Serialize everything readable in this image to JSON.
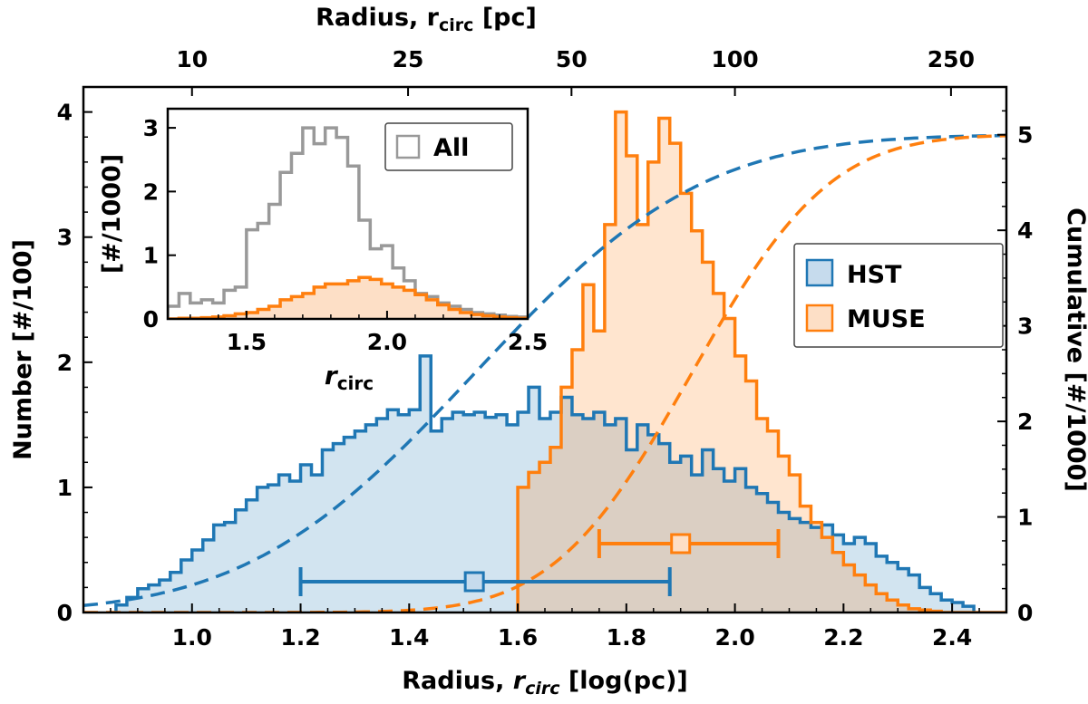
{
  "chart_data": [
    {
      "type": "histogram",
      "xlabel_prefix": "Radius, ",
      "xlabel_var": "r",
      "xlabel_sub": "circ",
      "xlabel_suffix": " [log(pc)]",
      "top_xlabel_prefix": "Radius, r",
      "top_xlabel_sub": "circ",
      "top_xlabel_suffix": " [pc]",
      "ylabel": "Number [#/100]",
      "y2label": "Cumulative [#/1000]",
      "xlim": [
        0.8,
        2.5
      ],
      "ylim": [
        0,
        4.2
      ],
      "y2lim": [
        0,
        5.5
      ],
      "xticks": [
        1.0,
        1.2,
        1.4,
        1.6,
        1.8,
        2.0,
        2.2,
        2.4
      ],
      "xtick_labels": [
        "1.0",
        "1.2",
        "1.4",
        "1.6",
        "1.8",
        "2.0",
        "2.2",
        "2.4"
      ],
      "yticks": [
        0,
        1,
        2,
        3,
        4
      ],
      "ytick_labels": [
        "0",
        "1",
        "2",
        "3",
        "4"
      ],
      "y2ticks": [
        0,
        1,
        2,
        3,
        4,
        5
      ],
      "y2tick_labels": [
        "0",
        "1",
        "2",
        "3",
        "4",
        "5"
      ],
      "top_xticks_pc": [
        10,
        25,
        50,
        100,
        250
      ],
      "top_xtick_labels": [
        "10",
        "25",
        "50",
        "100",
        "250"
      ],
      "bin_width": 0.02,
      "legend_position": "center-right",
      "series": [
        {
          "name": "HST",
          "color": "#1f77b4",
          "fill": "#c6dbed",
          "bin_start": 0.86,
          "counts": [
            0.06,
            0.12,
            0.19,
            0.22,
            0.26,
            0.32,
            0.42,
            0.5,
            0.58,
            0.7,
            0.72,
            0.82,
            0.9,
            1.0,
            1.02,
            1.1,
            1.05,
            1.18,
            1.1,
            1.3,
            1.35,
            1.4,
            1.45,
            1.5,
            1.55,
            1.62,
            1.58,
            1.62,
            2.05,
            1.45,
            1.55,
            1.6,
            1.58,
            1.6,
            1.56,
            1.58,
            1.5,
            1.6,
            1.8,
            1.55,
            1.6,
            1.72,
            1.58,
            1.55,
            1.6,
            1.5,
            1.55,
            1.3,
            1.5,
            1.42,
            1.35,
            1.2,
            1.25,
            1.1,
            1.3,
            1.15,
            1.05,
            1.15,
            1.0,
            0.95,
            0.88,
            0.8,
            0.75,
            0.72,
            0.68,
            0.7,
            0.62,
            0.55,
            0.6,
            0.55,
            0.45,
            0.4,
            0.35,
            0.3,
            0.2,
            0.15,
            0.1,
            0.08,
            0.05
          ],
          "median": 1.52,
          "err_low": 1.2,
          "err_high": 1.88
        },
        {
          "name": "MUSE",
          "color": "#ff7f0e",
          "fill": "#fddfc6",
          "bin_start": 1.6,
          "counts": [
            1.0,
            1.12,
            1.2,
            1.32,
            1.8,
            2.1,
            2.62,
            2.25,
            3.1,
            4.0,
            3.65,
            3.1,
            3.6,
            3.95,
            3.75,
            3.35,
            3.05,
            2.8,
            2.55,
            2.35,
            2.05,
            1.85,
            1.55,
            1.45,
            1.25,
            1.1,
            0.85,
            0.72,
            0.6,
            0.48,
            0.38,
            0.3,
            0.22,
            0.15,
            0.1,
            0.06,
            0.03,
            0.02,
            0.01,
            0.0,
            0.0,
            0.0,
            0.0,
            0.0,
            0.0
          ],
          "median": 1.9,
          "err_low": 1.75,
          "err_high": 2.08
        }
      ],
      "cumulative": [
        {
          "name": "HST",
          "color": "#1f77b4",
          "center": 1.52,
          "width": 0.33,
          "total": 5.0
        },
        {
          "name": "MUSE",
          "color": "#ff7f0e",
          "center": 1.92,
          "width": 0.2,
          "total": 5.0
        }
      ],
      "legend": [
        {
          "label": "HST",
          "color": "#1f77b4",
          "fill": "#c6dbed"
        },
        {
          "label": "MUSE",
          "color": "#ff7f0e",
          "fill": "#fddfc6"
        }
      ]
    },
    {
      "type": "histogram",
      "role": "inset",
      "ylabel": "[#/1000]",
      "xlabel_var": "r",
      "xlabel_sub": "circ",
      "xlim": [
        1.22,
        2.5
      ],
      "ylim": [
        0,
        3.3
      ],
      "xticks": [
        1.5,
        2.0,
        2.5
      ],
      "xtick_labels": [
        "1.5",
        "2.0",
        "2.5"
      ],
      "yticks": [
        0,
        1,
        2,
        3
      ],
      "ytick_labels": [
        "0",
        "1",
        "2",
        "3"
      ],
      "bin_width": 0.04,
      "series": [
        {
          "name": "All",
          "color": "#999999",
          "bin_start": 1.22,
          "counts": [
            0.2,
            0.4,
            0.25,
            0.3,
            0.25,
            0.45,
            0.5,
            1.4,
            1.5,
            1.8,
            2.3,
            2.6,
            3.0,
            2.75,
            3.0,
            2.85,
            2.4,
            1.55,
            1.1,
            1.15,
            0.8,
            0.6,
            0.4,
            0.35,
            0.25,
            0.2,
            0.15,
            0.1,
            0.08,
            0.06,
            0.04,
            0.03
          ]
        },
        {
          "name": "MUSE",
          "color": "#ff7f0e",
          "fill": "#fddfc6",
          "bin_start": 1.22,
          "counts": [
            0.0,
            0.01,
            0.01,
            0.02,
            0.03,
            0.05,
            0.08,
            0.1,
            0.15,
            0.2,
            0.3,
            0.35,
            0.4,
            0.5,
            0.55,
            0.55,
            0.6,
            0.65,
            0.62,
            0.55,
            0.5,
            0.45,
            0.38,
            0.3,
            0.22,
            0.15,
            0.1,
            0.07,
            0.05,
            0.03,
            0.02,
            0.01
          ]
        }
      ],
      "legend": [
        {
          "label": "All",
          "color": "#999999"
        }
      ]
    }
  ]
}
